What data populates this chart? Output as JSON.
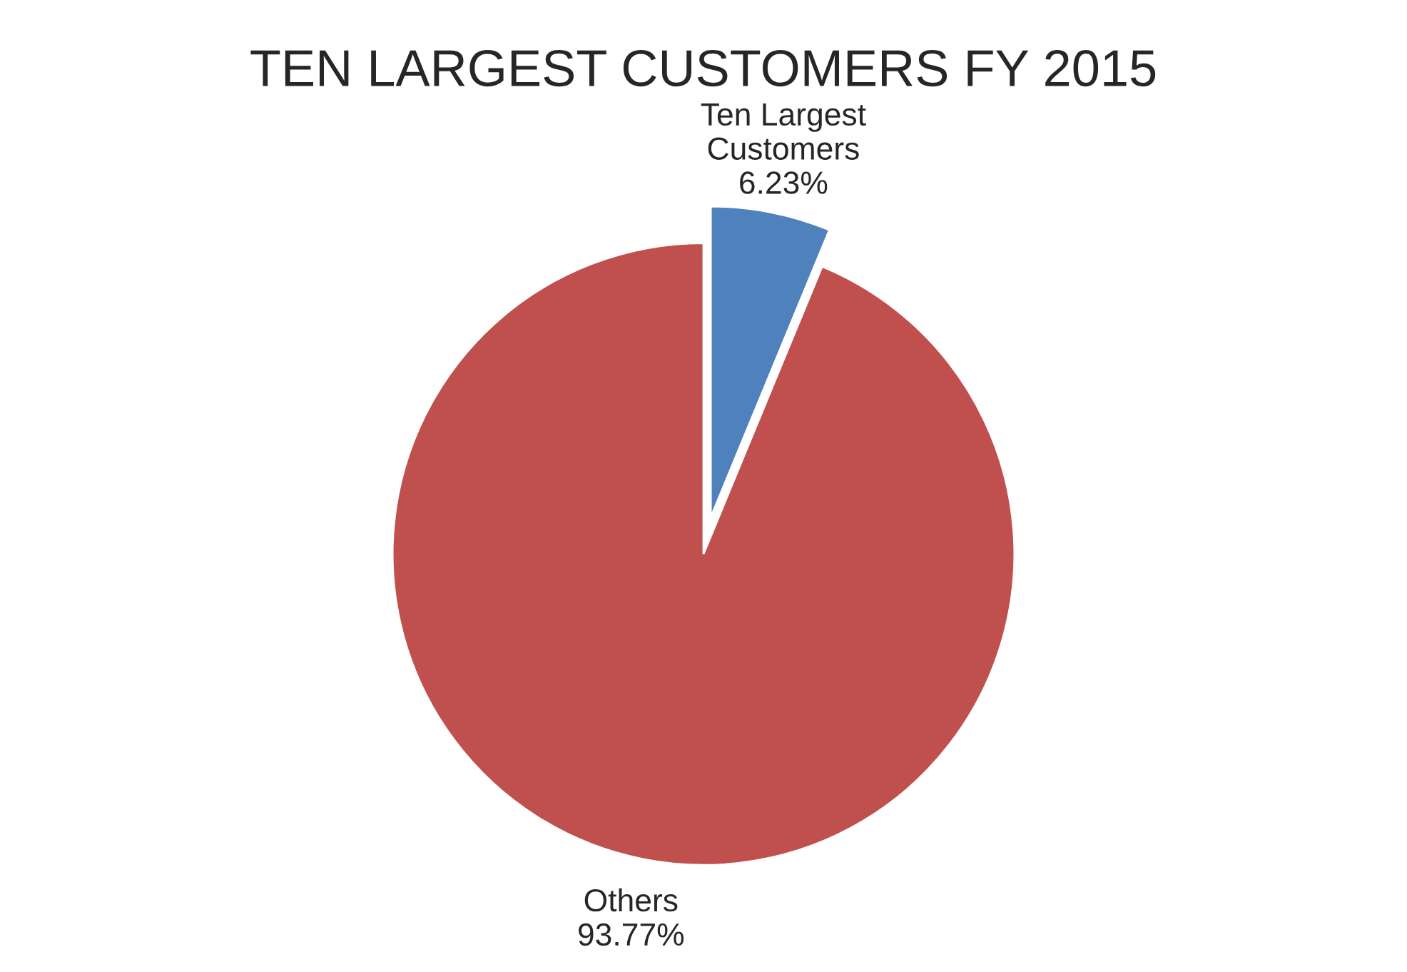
{
  "chart_data": {
    "type": "pie",
    "title": "TEN LARGEST CUSTOMERS FY 2015",
    "categories": [
      "Ten Largest\nCustomers",
      "Others"
    ],
    "values": [
      6.23,
      93.77
    ],
    "value_labels": [
      "6.23%",
      "93.77%"
    ],
    "colors": [
      "#4f81bd",
      "#c0504d"
    ],
    "legend": false
  }
}
